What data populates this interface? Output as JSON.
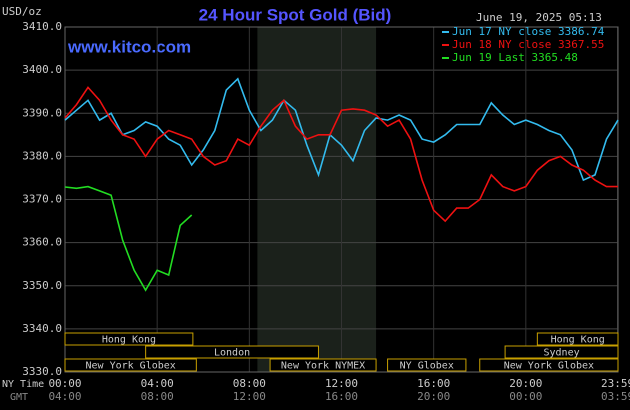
{
  "chart_data": {
    "type": "line",
    "title": "24 Hour Spot Gold (Bid)",
    "y_label": "USD/oz",
    "timestamp": "June 19, 2025 05:13",
    "source": "www.kitco.com",
    "x_row_labels": [
      "NY Time",
      "GMT"
    ],
    "x": [
      0,
      0.5,
      1,
      1.5,
      2,
      2.5,
      3,
      3.5,
      4,
      4.5,
      5,
      5.5,
      6,
      6.5,
      7,
      7.5,
      8,
      8.5,
      9,
      9.5,
      10,
      10.5,
      11,
      11.5,
      12,
      12.5,
      13,
      13.5,
      14,
      14.5,
      15,
      15.5,
      16,
      16.5,
      17,
      17.5,
      18,
      18.5,
      19,
      19.5,
      20,
      20.5,
      21,
      21.5,
      22,
      22.5,
      23,
      23.5,
      24
    ],
    "series": [
      {
        "name": "Jun 17 NY close 3386.74",
        "color": "#33bbee",
        "values": [
          3388.4,
          3390.7,
          3393,
          3388.4,
          3390,
          3385,
          3386,
          3388,
          3387,
          3384,
          3382.6,
          3378,
          3381.5,
          3386,
          3395.4,
          3398,
          3390.7,
          3386,
          3388.4,
          3393,
          3390.7,
          3382.6,
          3375.7,
          3385,
          3382.6,
          3379,
          3386,
          3388.9,
          3388.4,
          3389.6,
          3388.4,
          3384,
          3383.3,
          3385,
          3387.4,
          3387.4,
          3387.4,
          3392.4,
          3389.6,
          3387.4,
          3388.4,
          3387.4,
          3386,
          3385,
          3381.5,
          3374.5,
          3375.7,
          3384,
          3388.4
        ]
      },
      {
        "name": "Jun 18 NY close 3367.55",
        "color": "#ee1111",
        "values": [
          3388.9,
          3392,
          3396,
          3393,
          3388.4,
          3385,
          3384,
          3380,
          3384,
          3386,
          3385,
          3384,
          3380,
          3378,
          3379,
          3384,
          3382.6,
          3387,
          3390.7,
          3393,
          3387,
          3384,
          3385,
          3385,
          3390.7,
          3391,
          3390.7,
          3389.6,
          3387,
          3388.4,
          3384,
          3374.5,
          3367.5,
          3365,
          3368,
          3368,
          3370,
          3375.7,
          3373,
          3372,
          3373,
          3376.8,
          3379,
          3380,
          3378,
          3376.8,
          3374.5,
          3373,
          3373
        ]
      },
      {
        "name": "Jun 19 Last 3365.48",
        "color": "#22dd22",
        "values": [
          3372.9,
          3372.6,
          3373,
          3372,
          3371,
          3360.6,
          3353.6,
          3349,
          3353.6,
          3352.5,
          3364,
          3366.4,
          null,
          null,
          null,
          null,
          null,
          null,
          null,
          null,
          null,
          null,
          null,
          null,
          null,
          null,
          null,
          null,
          null,
          null,
          null,
          null,
          null,
          null,
          null,
          null,
          null,
          null,
          null,
          null,
          null,
          null,
          null,
          null,
          null,
          null,
          null,
          null,
          null
        ]
      }
    ],
    "xlim": [
      0,
      24
    ],
    "xticks": [
      {
        "value": 0,
        "label": "00:00"
      },
      {
        "value": 4,
        "label": "04:00"
      },
      {
        "value": 8,
        "label": "08:00"
      },
      {
        "value": 12,
        "label": "12:00"
      },
      {
        "value": 16,
        "label": "16:00"
      },
      {
        "value": 20,
        "label": "20:00"
      },
      {
        "value": 23.983,
        "label": "23:59"
      }
    ],
    "gmt_labels": [
      "04:00",
      "08:00",
      "12:00",
      "16:00",
      "20:00",
      "00:00",
      "03:59"
    ],
    "ylim": [
      3330,
      3410
    ],
    "yticks": [
      {
        "value": 3330,
        "label": "3330.0"
      },
      {
        "value": 3340,
        "label": "3340.0"
      },
      {
        "value": 3350,
        "label": "3350.0"
      },
      {
        "value": 3360,
        "label": "3360.0"
      },
      {
        "value": 3370,
        "label": "3370.0"
      },
      {
        "value": 3380,
        "label": "3380.0"
      },
      {
        "value": 3390,
        "label": "3390.0"
      },
      {
        "value": 3400,
        "label": "3400.0"
      },
      {
        "value": 3410,
        "label": "3410.0"
      }
    ],
    "grid": true,
    "shaded_hours": [
      8.35,
      13.5
    ],
    "sessions": [
      [
        {
          "label": "Hong Kong",
          "start": 0,
          "end": 5.55
        },
        {
          "label": "Hong Kong",
          "start": 20.5,
          "end": 24
        }
      ],
      [
        {
          "label": "London",
          "start": 3.5,
          "end": 11
        },
        {
          "label": "Sydney",
          "start": 19.1,
          "end": 24
        }
      ],
      [
        {
          "label": "New York Globex",
          "start": 0,
          "end": 5.7
        },
        {
          "label": "New York NYMEX",
          "start": 8.9,
          "end": 13.5
        },
        {
          "label": "NY Globex",
          "start": 14,
          "end": 17.4
        },
        {
          "label": "New York Globex",
          "start": 18,
          "end": 24
        }
      ]
    ]
  }
}
